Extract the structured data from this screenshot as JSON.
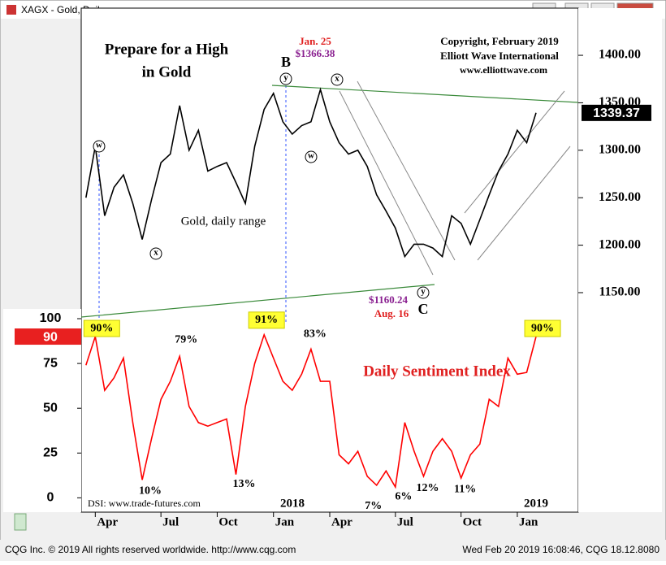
{
  "window": {
    "title": "XAGX - Gold, Daily",
    "footer_left": "CQG Inc. © 2019 All rights reserved worldwide. http://www.cqg.com",
    "footer_right": "Wed Feb 20 2019 16:08:46, CQG 18.12.8080"
  },
  "chart_data": [
    {
      "type": "line",
      "title": [
        "Prepare for a High",
        "in Gold"
      ],
      "label": "Gold, daily range",
      "color": "#000000",
      "values": [
        1250,
        1304,
        1231,
        1261,
        1274,
        1244,
        1206,
        1248,
        1287,
        1296,
        1347,
        1300,
        1321,
        1278,
        1283,
        1287,
        1266,
        1244,
        1304,
        1343,
        1360,
        1330,
        1317,
        1326,
        1330,
        1364,
        1330,
        1308,
        1296,
        1300,
        1283,
        1253,
        1236,
        1218,
        1188,
        1201,
        1201,
        1197,
        1188,
        1231,
        1223,
        1201,
        1227,
        1253,
        1278,
        1296,
        1321,
        1308,
        1339.37,
        null,
        null,
        null,
        null
      ],
      "ylim": [
        1126,
        1448
      ],
      "yticks": [
        {
          "value": 1150,
          "label": "1150.00"
        },
        {
          "value": 1200,
          "label": "1200.00"
        },
        {
          "value": 1250,
          "label": "1250.00"
        },
        {
          "value": 1300,
          "label": "1300.00"
        },
        {
          "value": 1350,
          "label": "1350.00"
        },
        {
          "value": 1400,
          "label": "1400.00"
        }
      ],
      "annotations": [
        "B",
        "Jan. 25",
        "$1366.38",
        "Copyright, February 2019",
        "Elliott Wave International",
        "www.elliottwave.com",
        "$1160.24",
        "Aug. 16",
        "C"
      ],
      "wave_labels": [
        "w",
        "x",
        "y",
        "w",
        "x",
        "y"
      ]
    },
    {
      "type": "line",
      "title": "Daily Sentiment Index",
      "source": "DSI: www.trade-futures.com",
      "color": "#ff0000",
      "categories": [
        null,
        "Apr",
        null,
        null,
        null,
        null,
        null,
        null,
        "Jul",
        null,
        null,
        null,
        null,
        null,
        "Oct",
        null,
        null,
        null,
        null,
        null,
        "Jan",
        null,
        null,
        null,
        null,
        null,
        "Apr",
        null,
        null,
        null,
        null,
        null,
        null,
        "Jul",
        null,
        null,
        null,
        null,
        null,
        null,
        "Oct",
        null,
        null,
        null,
        null,
        null,
        "Jan",
        null,
        null,
        null,
        null,
        null,
        null
      ],
      "x_year_labels": [
        "2018",
        "2019"
      ],
      "values": [
        74,
        90,
        60,
        67,
        78,
        42,
        10,
        33,
        55,
        65,
        79,
        51,
        42,
        40,
        42,
        44,
        13,
        51,
        75,
        91,
        78,
        65,
        60,
        69,
        83,
        65,
        65,
        24,
        19,
        26,
        12,
        7,
        15,
        6,
        42,
        26,
        12,
        26,
        33,
        26,
        11,
        24,
        30,
        55,
        51,
        78,
        69,
        70,
        90,
        null,
        null,
        null,
        null
      ],
      "value_labels": [
        null,
        "90%",
        null,
        null,
        null,
        null,
        "10%",
        null,
        null,
        null,
        "79%",
        null,
        null,
        null,
        null,
        null,
        "13%",
        null,
        null,
        "91%",
        null,
        null,
        null,
        null,
        "83%",
        null,
        null,
        null,
        null,
        null,
        null,
        "7%",
        null,
        "6%",
        null,
        null,
        "12%",
        null,
        null,
        null,
        "11%",
        null,
        null,
        null,
        null,
        null,
        null,
        null,
        "90%",
        null,
        null,
        null,
        null
      ],
      "ylim": [
        -8,
        100
      ],
      "yticks": [
        0,
        25,
        50,
        75,
        100
      ]
    }
  ]
}
